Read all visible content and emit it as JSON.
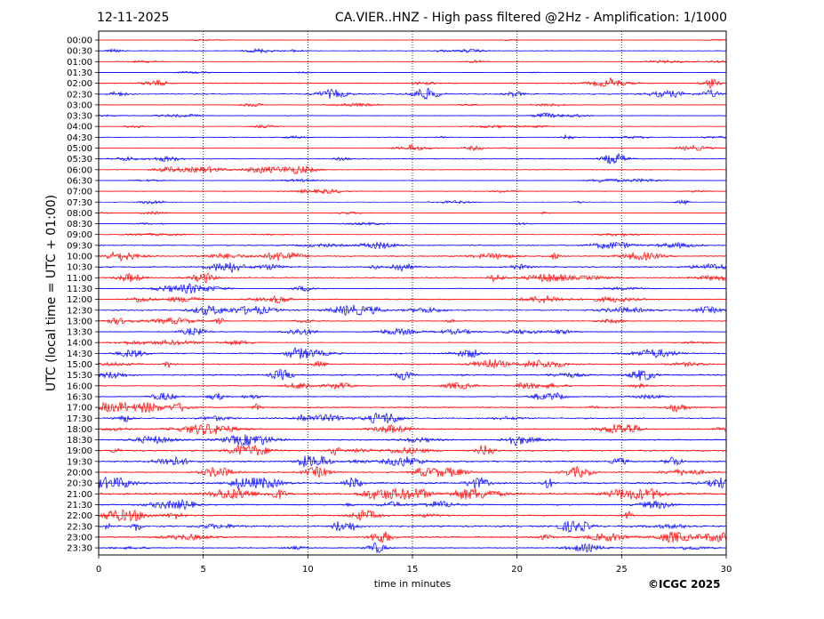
{
  "header": {
    "date": "12-11-2025",
    "title": "CA.VIER..HNZ - High pass filtered @2Hz - Amplification: 1/1000"
  },
  "copyright": "©ICGC 2025",
  "colors": {
    "red": "#ff0000",
    "blue": "#0000ff",
    "frame": "#000000"
  },
  "chart_data": {
    "type": "line",
    "title": "CA.VIER..HNZ - High pass filtered @2Hz - Amplification: 1/1000",
    "xlabel": "time in minutes",
    "ylabel": "UTC (local time = UTC + 01:00)",
    "xlim": [
      0,
      30
    ],
    "x_ticks": [
      0,
      5,
      10,
      15,
      20,
      25,
      30
    ],
    "vertical_gridlines": [
      5,
      10,
      15,
      20,
      25
    ],
    "row_labels": [
      "00:00",
      "00:30",
      "01:00",
      "01:30",
      "02:00",
      "02:30",
      "03:00",
      "03:30",
      "04:00",
      "04:30",
      "05:00",
      "05:30",
      "06:00",
      "06:30",
      "07:00",
      "07:30",
      "08:00",
      "08:30",
      "09:00",
      "09:30",
      "10:00",
      "10:30",
      "11:00",
      "11:30",
      "12:00",
      "12:30",
      "13:00",
      "13:30",
      "14:00",
      "14:30",
      "15:00",
      "15:30",
      "16:00",
      "16:30",
      "17:00",
      "17:30",
      "18:00",
      "18:30",
      "19:00",
      "19:30",
      "20:00",
      "20:30",
      "21:00",
      "21:30",
      "22:00",
      "22:30",
      "23:00",
      "23:30"
    ],
    "row_colors": [
      "red",
      "blue",
      "red",
      "blue",
      "red",
      "blue",
      "red",
      "blue",
      "red",
      "blue",
      "red",
      "blue",
      "red",
      "blue",
      "red",
      "blue",
      "red",
      "blue",
      "red",
      "blue",
      "red",
      "blue",
      "red",
      "blue",
      "red",
      "blue",
      "red",
      "blue",
      "red",
      "blue",
      "red",
      "blue",
      "red",
      "blue",
      "red",
      "blue",
      "red",
      "blue",
      "red",
      "blue",
      "red",
      "blue",
      "red",
      "blue",
      "red",
      "blue",
      "red",
      "blue"
    ],
    "row_activity": [
      0.2,
      0.5,
      0.3,
      0.2,
      0.8,
      0.9,
      0.4,
      0.5,
      0.4,
      0.6,
      0.5,
      0.6,
      0.6,
      0.4,
      0.5,
      0.4,
      0.3,
      0.3,
      0.3,
      0.8,
      1.0,
      1.0,
      0.9,
      0.6,
      0.9,
      1.0,
      0.7,
      0.7,
      0.5,
      0.9,
      1.0,
      1.0,
      0.8,
      0.8,
      1.1,
      1.0,
      0.9,
      1.0,
      1.1,
      1.2,
      1.0,
      1.4,
      1.4,
      1.0,
      1.0,
      1.2,
      1.2,
      0.8
    ],
    "grid": true
  }
}
